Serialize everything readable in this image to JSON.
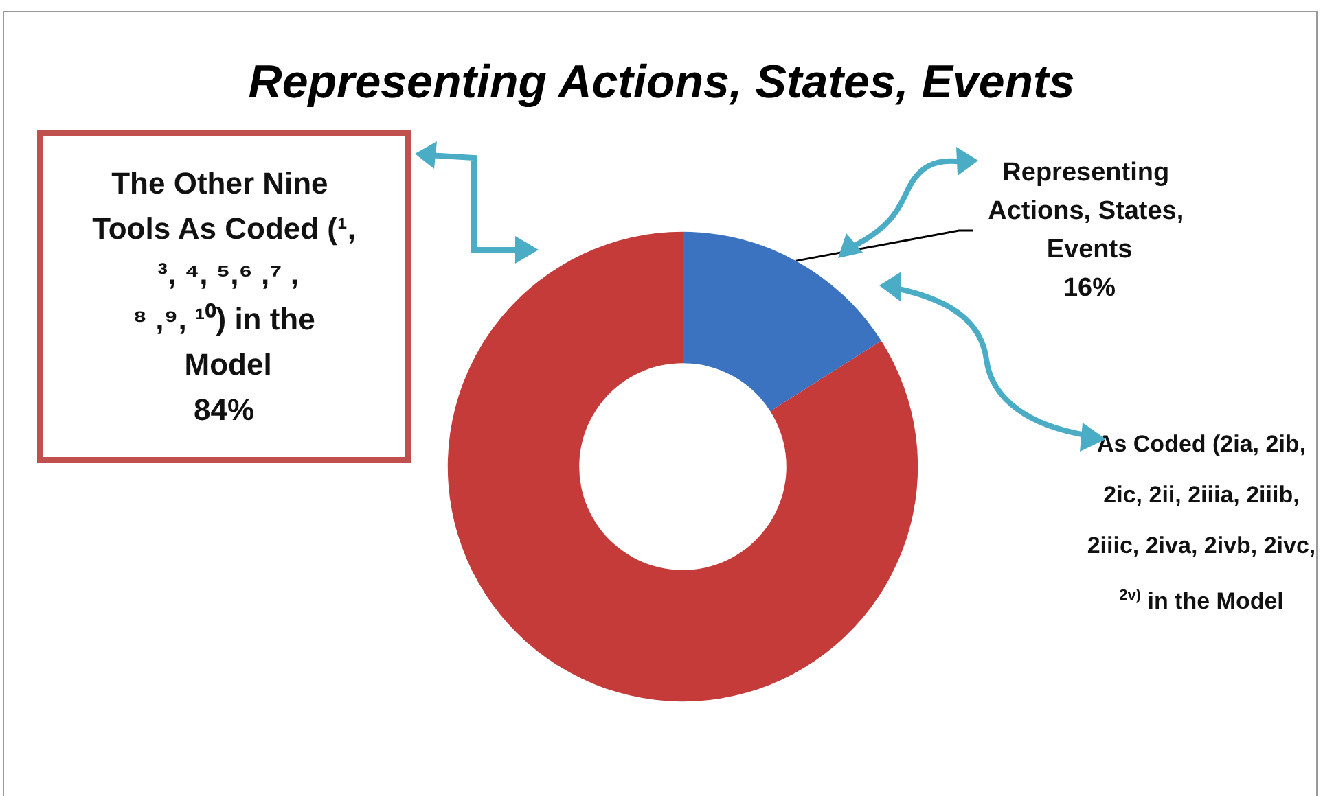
{
  "chart_data": {
    "type": "donut",
    "title": "Representing Actions, States, Events",
    "categories": [
      "Representing Actions, States, Events",
      "The Other Nine Tools As Coded (¹, ³, ⁴, ⁵,⁶ ,⁷ ,⁸ ,⁹, ¹⁰) in the Model"
    ],
    "values": [
      16,
      84
    ],
    "value_labels": [
      "16%",
      "84%"
    ],
    "colors": [
      "#3b73c0",
      "#c43b39"
    ],
    "annotations": [
      "As Coded (2ia, 2ib, 2ic, 2ii, 2iiia, 2iiib, 2iiic, 2iva, 2ivb, 2ivc, $^{2v)}$ in the Model"
    ],
    "legend": false
  }
}
